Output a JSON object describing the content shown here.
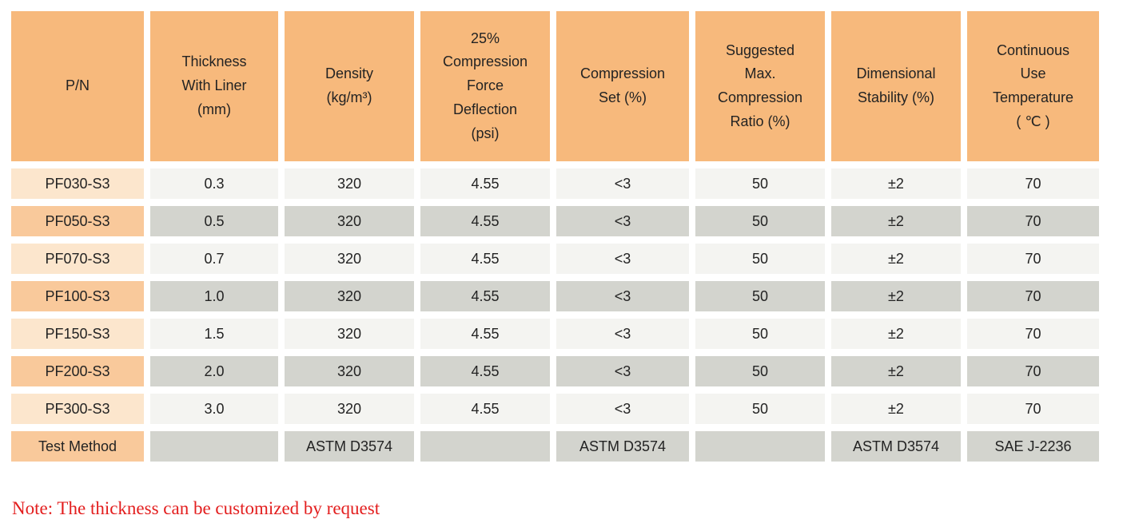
{
  "table": {
    "columns": [
      "P/N",
      "Thickness\nWith Liner\n(mm)",
      "Density\n(kg/m³)",
      "25%\nCompression\nForce\nDeflection\n(psi)",
      "Compression\nSet (%)",
      "Suggested\nMax.\nCompression\nRatio (%)",
      "Dimensional\nStability (%)",
      "Continuous\nUse\nTemperature\n( ℃ )"
    ],
    "rows": [
      {
        "pn": "PF030-S3",
        "values": [
          "0.3",
          "320",
          "4.55",
          "<3",
          "50",
          "±2",
          "70"
        ]
      },
      {
        "pn": "PF050-S3",
        "values": [
          "0.5",
          "320",
          "4.55",
          "<3",
          "50",
          "±2",
          "70"
        ]
      },
      {
        "pn": "PF070-S3",
        "values": [
          "0.7",
          "320",
          "4.55",
          "<3",
          "50",
          "±2",
          "70"
        ]
      },
      {
        "pn": "PF100-S3",
        "values": [
          "1.0",
          "320",
          "4.55",
          "<3",
          "50",
          "±2",
          "70"
        ]
      },
      {
        "pn": "PF150-S3",
        "values": [
          "1.5",
          "320",
          "4.55",
          "<3",
          "50",
          "±2",
          "70"
        ]
      },
      {
        "pn": "PF200-S3",
        "values": [
          "2.0",
          "320",
          "4.55",
          "<3",
          "50",
          "±2",
          "70"
        ]
      },
      {
        "pn": "PF300-S3",
        "values": [
          "3.0",
          "320",
          "4.55",
          "<3",
          "50",
          "±2",
          "70"
        ]
      }
    ],
    "test_method_row": {
      "label": "Test Method",
      "values": [
        "",
        "ASTM D3574",
        "",
        "ASTM D3574",
        "",
        "ASTM D3574",
        "SAE J-2236"
      ]
    }
  },
  "note": "Note: The thickness can be customized by request",
  "colors": {
    "header_bg": "#f7b97c",
    "pn_odd_bg": "#fce6cd",
    "pn_even_bg": "#f9c99b",
    "cell_odd_bg": "#f4f4f1",
    "cell_even_bg": "#d3d4ce",
    "note_red": "#e31e1e",
    "text": "#232323",
    "page_bg": "#ffffff"
  }
}
